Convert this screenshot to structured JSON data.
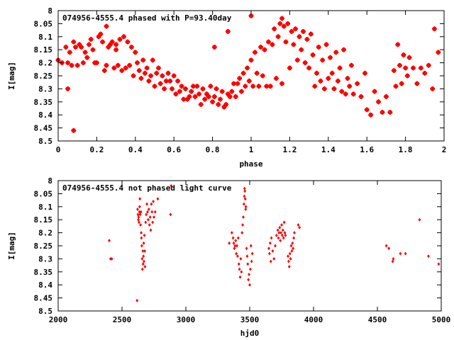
{
  "chart_data": [
    {
      "type": "scatter",
      "title": "074956-4555.4 phased with P=93.40day",
      "xlabel": "phase",
      "ylabel": "I[mag]",
      "xlim": [
        0,
        2
      ],
      "ylim": [
        8.5,
        8
      ],
      "y_inverted": true,
      "xticks": [
        "0",
        "0.2",
        "0.4",
        "0.6",
        "0.8",
        "1",
        "1.2",
        "1.4",
        "1.6",
        "1.8",
        "2"
      ],
      "yticks": [
        "8",
        "8.05",
        "8.1",
        "8.15",
        "8.2",
        "8.25",
        "8.3",
        "8.35",
        "8.4",
        "8.45",
        "8.5"
      ],
      "marker": "filled-star",
      "color": "#ff0000",
      "points": [
        [
          0.0,
          8.19
        ],
        [
          0.02,
          8.2
        ],
        [
          0.04,
          8.14
        ],
        [
          0.05,
          8.2
        ],
        [
          0.06,
          8.16
        ],
        [
          0.07,
          8.21
        ],
        [
          0.08,
          8.12
        ],
        [
          0.09,
          8.14
        ],
        [
          0.1,
          8.21
        ],
        [
          0.11,
          8.13
        ],
        [
          0.12,
          8.14
        ],
        [
          0.13,
          8.2
        ],
        [
          0.14,
          8.16
        ],
        [
          0.15,
          8.18
        ],
        [
          0.16,
          8.13
        ],
        [
          0.17,
          8.11
        ],
        [
          0.18,
          8.15
        ],
        [
          0.19,
          8.2
        ],
        [
          0.2,
          8.2
        ],
        [
          0.21,
          8.1
        ],
        [
          0.22,
          8.09
        ],
        [
          0.23,
          8.12
        ],
        [
          0.24,
          8.23
        ],
        [
          0.25,
          8.21
        ],
        [
          0.26,
          8.14
        ],
        [
          0.27,
          8.13
        ],
        [
          0.28,
          8.12
        ],
        [
          0.29,
          8.22
        ],
        [
          0.3,
          8.13
        ],
        [
          0.31,
          8.21
        ],
        [
          0.32,
          8.11
        ],
        [
          0.33,
          8.23
        ],
        [
          0.34,
          8.1
        ],
        [
          0.35,
          8.22
        ],
        [
          0.36,
          8.12
        ],
        [
          0.37,
          8.21
        ],
        [
          0.38,
          8.14
        ],
        [
          0.39,
          8.25
        ],
        [
          0.4,
          8.16
        ],
        [
          0.41,
          8.2
        ],
        [
          0.42,
          8.23
        ],
        [
          0.43,
          8.26
        ],
        [
          0.44,
          8.19
        ],
        [
          0.45,
          8.24
        ],
        [
          0.46,
          8.22
        ],
        [
          0.47,
          8.27
        ],
        [
          0.48,
          8.25
        ],
        [
          0.49,
          8.19
        ],
        [
          0.5,
          8.29
        ],
        [
          0.51,
          8.24
        ],
        [
          0.52,
          8.22
        ],
        [
          0.53,
          8.28
        ],
        [
          0.54,
          8.25
        ],
        [
          0.55,
          8.3
        ],
        [
          0.56,
          8.27
        ],
        [
          0.57,
          8.24
        ],
        [
          0.58,
          8.27
        ],
        [
          0.59,
          8.3
        ],
        [
          0.6,
          8.25
        ],
        [
          0.61,
          8.32
        ],
        [
          0.62,
          8.27
        ],
        [
          0.63,
          8.31
        ],
        [
          0.64,
          8.29
        ],
        [
          0.65,
          8.34
        ],
        [
          0.66,
          8.3
        ],
        [
          0.67,
          8.34
        ],
        [
          0.68,
          8.33
        ],
        [
          0.69,
          8.31
        ],
        [
          0.7,
          8.29
        ],
        [
          0.71,
          8.33
        ],
        [
          0.72,
          8.29
        ],
        [
          0.73,
          8.32
        ],
        [
          0.74,
          8.36
        ],
        [
          0.75,
          8.3
        ],
        [
          0.76,
          8.34
        ],
        [
          0.77,
          8.32
        ],
        [
          0.78,
          8.33
        ],
        [
          0.79,
          8.29
        ],
        [
          0.8,
          8.35
        ],
        [
          0.81,
          8.33
        ],
        [
          0.82,
          8.3
        ],
        [
          0.83,
          8.36
        ],
        [
          0.84,
          8.34
        ],
        [
          0.85,
          8.31
        ],
        [
          0.86,
          8.37
        ],
        [
          0.87,
          8.36
        ],
        [
          0.88,
          8.32
        ],
        [
          0.89,
          8.33
        ],
        [
          0.9,
          8.31
        ],
        [
          0.91,
          8.28
        ],
        [
          0.92,
          8.33
        ],
        [
          0.93,
          8.28
        ],
        [
          0.94,
          8.26
        ],
        [
          0.95,
          8.31
        ],
        [
          0.96,
          8.24
        ],
        [
          0.97,
          8.29
        ],
        [
          0.98,
          8.22
        ],
        [
          0.99,
          8.27
        ],
        [
          1.0,
          8.19
        ],
        [
          1.01,
          8.29
        ],
        [
          1.02,
          8.16
        ],
        [
          1.03,
          8.24
        ],
        [
          1.04,
          8.29
        ],
        [
          1.05,
          8.14
        ],
        [
          1.06,
          8.25
        ],
        [
          1.07,
          8.15
        ],
        [
          1.08,
          8.29
        ],
        [
          1.09,
          8.12
        ],
        [
          1.1,
          8.29
        ],
        [
          1.11,
          8.13
        ],
        [
          1.12,
          8.07
        ],
        [
          1.13,
          8.26
        ],
        [
          1.14,
          8.1
        ],
        [
          1.15,
          8.05
        ],
        [
          1.16,
          8.28
        ],
        [
          1.17,
          8.06
        ],
        [
          1.18,
          8.12
        ],
        [
          1.19,
          8.05
        ],
        [
          1.2,
          8.22
        ],
        [
          1.21,
          8.08
        ],
        [
          1.22,
          8.13
        ],
        [
          1.23,
          8.07
        ],
        [
          1.24,
          8.19
        ],
        [
          1.25,
          8.1
        ],
        [
          1.26,
          8.15
        ],
        [
          1.27,
          8.08
        ],
        [
          1.28,
          8.2
        ],
        [
          1.29,
          8.11
        ],
        [
          1.3,
          8.22
        ],
        [
          1.31,
          8.09
        ],
        [
          1.32,
          8.17
        ],
        [
          1.33,
          8.29
        ],
        [
          1.34,
          8.24
        ],
        [
          1.35,
          8.14
        ],
        [
          1.36,
          8.27
        ],
        [
          1.37,
          8.19
        ],
        [
          1.38,
          8.3
        ],
        [
          1.39,
          8.13
        ],
        [
          1.4,
          8.26
        ],
        [
          1.41,
          8.18
        ],
        [
          1.42,
          8.24
        ],
        [
          1.43,
          8.3
        ],
        [
          1.44,
          8.16
        ],
        [
          1.45,
          8.27
        ],
        [
          1.46,
          8.22
        ],
        [
          1.47,
          8.31
        ],
        [
          1.48,
          8.15
        ],
        [
          1.49,
          8.32
        ],
        [
          1.5,
          8.26
        ],
        [
          1.51,
          8.29
        ],
        [
          1.52,
          8.21
        ],
        [
          1.53,
          8.32
        ],
        [
          1.55,
          8.28
        ],
        [
          1.57,
          8.33
        ],
        [
          1.59,
          8.24
        ],
        [
          1.6,
          8.38
        ],
        [
          1.62,
          8.4
        ],
        [
          1.64,
          8.31
        ],
        [
          1.66,
          8.35
        ],
        [
          1.68,
          8.39
        ],
        [
          1.7,
          8.33
        ],
        [
          1.72,
          8.39
        ],
        [
          1.74,
          8.23
        ],
        [
          1.75,
          8.29
        ],
        [
          1.76,
          8.13
        ],
        [
          1.77,
          8.21
        ],
        [
          1.78,
          8.28
        ],
        [
          1.79,
          8.17
        ],
        [
          1.8,
          8.22
        ],
        [
          1.81,
          8.25
        ],
        [
          1.82,
          8.18
        ],
        [
          1.84,
          8.22
        ],
        [
          1.86,
          8.28
        ],
        [
          1.88,
          8.22
        ],
        [
          1.9,
          8.24
        ],
        [
          1.92,
          8.21
        ],
        [
          1.94,
          8.3
        ],
        [
          1.95,
          8.07
        ],
        [
          1.97,
          8.16
        ],
        [
          0.08,
          8.46
        ],
        [
          0.05,
          8.3
        ],
        [
          0.25,
          8.06
        ],
        [
          0.81,
          8.14
        ],
        [
          0.88,
          8.08
        ],
        [
          1.0,
          8.02
        ],
        [
          1.16,
          8.03
        ],
        [
          0.3,
          8.15
        ]
      ]
    },
    {
      "type": "scatter",
      "title": "074956-4555.4 not phased light curve",
      "xlabel": "hjd0",
      "ylabel": "I[mag]",
      "xlim": [
        2000,
        5000
      ],
      "ylim": [
        8.5,
        8
      ],
      "y_inverted": true,
      "xticks": [
        "2000",
        "2500",
        "3000",
        "3500",
        "4000",
        "4500",
        "5000"
      ],
      "yticks": [
        "8",
        "8.05",
        "8.1",
        "8.15",
        "8.2",
        "8.25",
        "8.3",
        "8.35",
        "8.4",
        "8.45",
        "8.5"
      ],
      "marker": "small-diamond",
      "color": "#ff0000",
      "points": [
        [
          2400,
          8.23
        ],
        [
          2410,
          8.3
        ],
        [
          2420,
          8.3
        ],
        [
          2618,
          8.46
        ],
        [
          2622,
          8.11
        ],
        [
          2625,
          8.13
        ],
        [
          2628,
          8.15
        ],
        [
          2630,
          8.14
        ],
        [
          2633,
          8.16
        ],
        [
          2636,
          8.12
        ],
        [
          2638,
          8.1
        ],
        [
          2640,
          8.07
        ],
        [
          2642,
          8.13
        ],
        [
          2645,
          8.17
        ],
        [
          2648,
          8.12
        ],
        [
          2650,
          8.2
        ],
        [
          2652,
          8.22
        ],
        [
          2655,
          8.25
        ],
        [
          2658,
          8.3
        ],
        [
          2660,
          8.34
        ],
        [
          2663,
          8.27
        ],
        [
          2665,
          8.32
        ],
        [
          2668,
          8.29
        ],
        [
          2670,
          8.24
        ],
        [
          2672,
          8.31
        ],
        [
          2675,
          8.21
        ],
        [
          2678,
          8.27
        ],
        [
          2680,
          8.33
        ],
        [
          2685,
          8.16
        ],
        [
          2690,
          8.13
        ],
        [
          2695,
          8.09
        ],
        [
          2700,
          8.12
        ],
        [
          2705,
          8.15
        ],
        [
          2710,
          8.11
        ],
        [
          2715,
          8.17
        ],
        [
          2720,
          8.14
        ],
        [
          2725,
          8.19
        ],
        [
          2730,
          8.09
        ],
        [
          2735,
          8.12
        ],
        [
          2740,
          8.16
        ],
        [
          2745,
          8.08
        ],
        [
          2750,
          8.14
        ],
        [
          2760,
          8.12
        ],
        [
          2780,
          8.07
        ],
        [
          2880,
          8.13
        ],
        [
          2885,
          8.02
        ],
        [
          3340,
          8.24
        ],
        [
          3360,
          8.2
        ],
        [
          3370,
          8.22
        ],
        [
          3375,
          8.24
        ],
        [
          3380,
          8.26
        ],
        [
          3385,
          8.25
        ],
        [
          3390,
          8.23
        ],
        [
          3395,
          8.28
        ],
        [
          3400,
          8.25
        ],
        [
          3405,
          8.29
        ],
        [
          3410,
          8.22
        ],
        [
          3415,
          8.32
        ],
        [
          3420,
          8.34
        ],
        [
          3425,
          8.37
        ],
        [
          3430,
          8.3
        ],
        [
          3435,
          8.35
        ],
        [
          3440,
          8.2
        ],
        [
          3445,
          8.17
        ],
        [
          3450,
          8.14
        ],
        [
          3455,
          8.09
        ],
        [
          3458,
          8.06
        ],
        [
          3460,
          8.03
        ],
        [
          3462,
          8.04
        ],
        [
          3465,
          8.07
        ],
        [
          3468,
          8.11
        ],
        [
          3470,
          8.1
        ],
        [
          3475,
          8.26
        ],
        [
          3480,
          8.29
        ],
        [
          3485,
          8.32
        ],
        [
          3490,
          8.38
        ],
        [
          3495,
          8.36
        ],
        [
          3500,
          8.4
        ],
        [
          3505,
          8.34
        ],
        [
          3510,
          8.25
        ],
        [
          3515,
          8.31
        ],
        [
          3520,
          8.28
        ],
        [
          3650,
          8.26
        ],
        [
          3655,
          8.28
        ],
        [
          3660,
          8.24
        ],
        [
          3665,
          8.31
        ],
        [
          3670,
          8.22
        ],
        [
          3680,
          8.27
        ],
        [
          3690,
          8.3
        ],
        [
          3700,
          8.25
        ],
        [
          3710,
          8.21
        ],
        [
          3720,
          8.19
        ],
        [
          3725,
          8.22
        ],
        [
          3730,
          8.2
        ],
        [
          3735,
          8.18
        ],
        [
          3740,
          8.23
        ],
        [
          3745,
          8.2
        ],
        [
          3750,
          8.17
        ],
        [
          3755,
          8.21
        ],
        [
          3760,
          8.19
        ],
        [
          3765,
          8.22
        ],
        [
          3770,
          8.16
        ],
        [
          3775,
          8.2
        ],
        [
          3780,
          8.21
        ],
        [
          3800,
          8.29
        ],
        [
          3805,
          8.31
        ],
        [
          3810,
          8.33
        ],
        [
          3815,
          8.28
        ],
        [
          3820,
          8.3
        ],
        [
          3825,
          8.25
        ],
        [
          3830,
          8.27
        ],
        [
          3835,
          8.24
        ],
        [
          3840,
          8.26
        ],
        [
          3845,
          8.22
        ],
        [
          3850,
          8.2
        ],
        [
          3880,
          8.17
        ],
        [
          3890,
          8.18
        ],
        [
          4570,
          8.25
        ],
        [
          4590,
          8.26
        ],
        [
          4620,
          8.31
        ],
        [
          4625,
          8.3
        ],
        [
          4680,
          8.28
        ],
        [
          4720,
          8.28
        ],
        [
          4830,
          8.15
        ],
        [
          4900,
          8.29
        ],
        [
          4980,
          8.32
        ]
      ]
    }
  ]
}
